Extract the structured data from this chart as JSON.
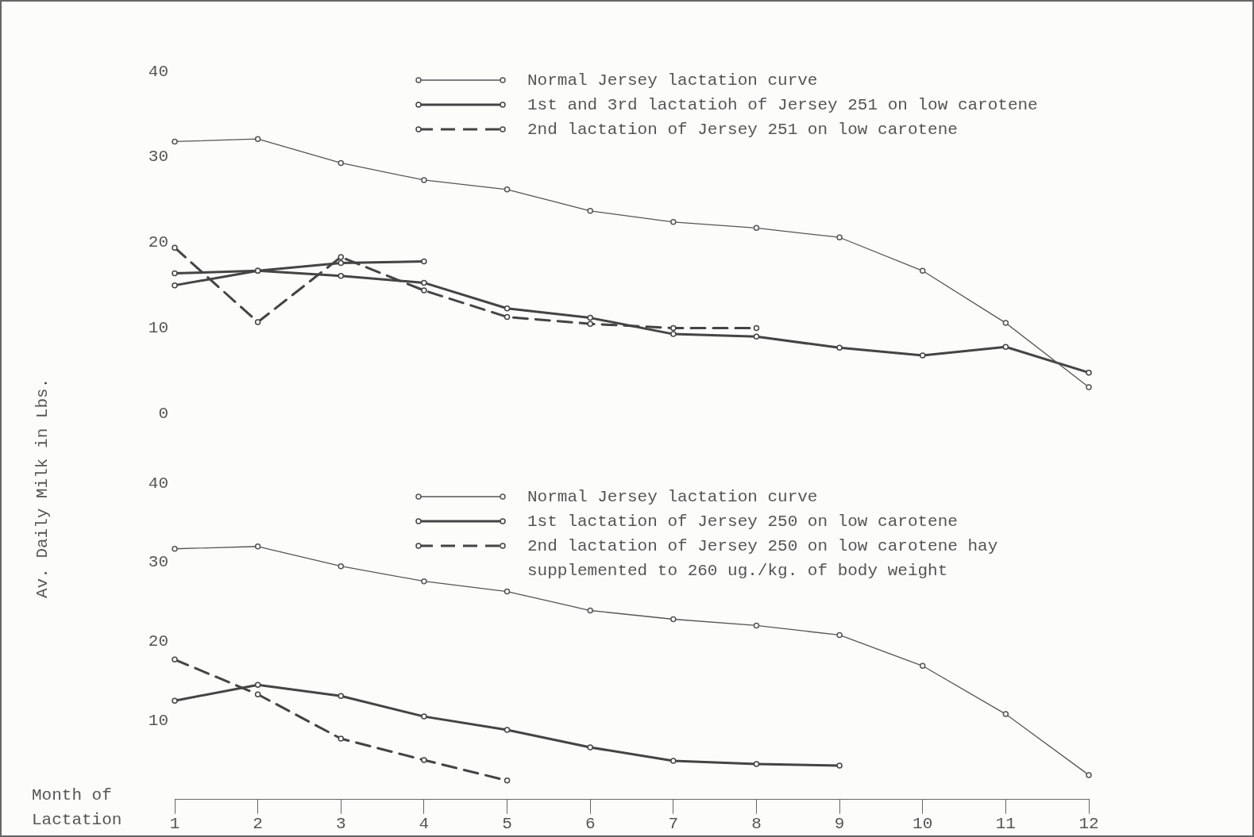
{
  "chart_data": [
    {
      "type": "line",
      "ylabel": "Av. Daily Milk in Lbs.",
      "x": [
        1,
        2,
        3,
        4,
        5,
        6,
        7,
        8,
        9,
        10,
        11,
        12
      ],
      "xlim": [
        1,
        12
      ],
      "xticks": [
        1,
        2,
        3,
        4,
        5,
        6,
        7,
        8,
        9,
        10,
        11,
        12
      ],
      "ylim": [
        0,
        40
      ],
      "yticks": [
        0,
        10,
        20,
        30,
        40
      ],
      "tick_labels": "y",
      "grid": false,
      "legend": "top",
      "marker": "circle",
      "series": [
        {
          "name": "Normal Jersey lactation curve",
          "color": "#555555",
          "line_style": "solid",
          "values": [
            31.8,
            32.1,
            29.3,
            27.3,
            26.2,
            23.7,
            22.4,
            21.7,
            20.6,
            16.7,
            10.6,
            3.1
          ]
        },
        {
          "name": "1st and 3rd lactatioh of Jersey 251 on low carotene",
          "color": "#444444",
          "line_style": "solid",
          "values": [
            15.0,
            16.7,
            16.1,
            15.3,
            12.3,
            11.2,
            9.3,
            9.0,
            7.7,
            6.8,
            7.8,
            4.8
          ]
        },
        {
          "name": "2nd lactation of Jersey 251 on low carotene",
          "color": "#444444",
          "line_style": "dashed",
          "values": [
            19.4,
            10.7,
            18.3,
            14.4,
            11.3,
            10.5,
            10.0,
            10.0,
            null,
            null,
            null,
            null
          ]
        },
        {
          "color": "#444444",
          "line_style": "solid",
          "values": [
            16.4,
            16.7,
            17.6,
            17.8,
            null,
            null,
            null,
            null,
            null,
            null,
            null,
            null
          ]
        }
      ]
    },
    {
      "type": "line",
      "xlabel": "Month of Lactation",
      "x": [
        1,
        2,
        3,
        4,
        5,
        6,
        7,
        8,
        9,
        10,
        11,
        12
      ],
      "xlim": [
        1,
        12
      ],
      "xticks": [
        1,
        2,
        3,
        4,
        5,
        6,
        7,
        8,
        9,
        10,
        11,
        12
      ],
      "ylim": [
        0,
        40
      ],
      "yticks": [
        10,
        20,
        30,
        40
      ],
      "grid": false,
      "legend": "top",
      "marker": "circle",
      "series": [
        {
          "name": "Normal Jersey lactation curve",
          "color": "#555555",
          "line_style": "solid",
          "values": [
            31.7,
            32.0,
            29.5,
            27.6,
            26.3,
            23.9,
            22.8,
            22.0,
            20.8,
            16.9,
            10.8,
            3.1
          ]
        },
        {
          "name": "1st lactation of Jersey 250 on low carotene",
          "color": "#444444",
          "line_style": "solid",
          "values": [
            12.5,
            14.5,
            13.1,
            10.5,
            8.8,
            6.6,
            4.9,
            4.5,
            4.3,
            null,
            null,
            null
          ]
        },
        {
          "name": "2nd lactation of Jersey 250 on low carotene hay supplemented to 260 ug./kg. of body weight",
          "color": "#444444",
          "line_style": "dashed",
          "values": [
            17.7,
            13.3,
            7.7,
            5.0,
            2.4,
            null,
            null,
            null,
            null,
            null,
            null,
            null
          ]
        }
      ]
    }
  ]
}
